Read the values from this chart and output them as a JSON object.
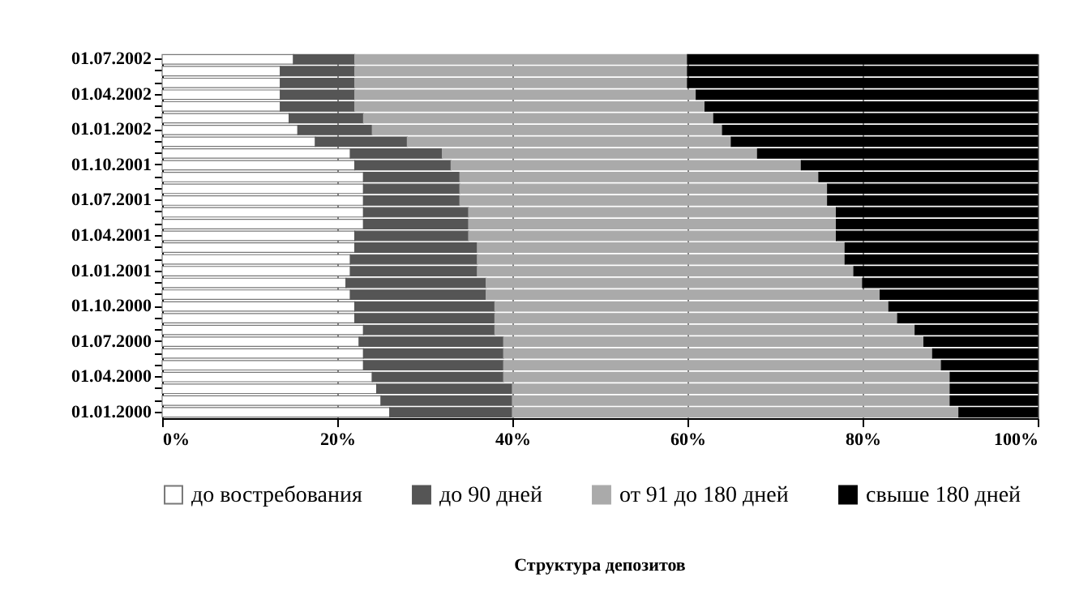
{
  "chart_data": {
    "type": "bar",
    "orientation": "horizontal",
    "stacked": true,
    "title": "Структура депозитов",
    "categories": [
      "01.07.2002",
      null,
      null,
      "01.04.2002",
      null,
      null,
      "01.01.2002",
      null,
      null,
      "01.10.2001",
      null,
      null,
      "01.07.2001",
      null,
      null,
      "01.04.2001",
      null,
      null,
      "01.01.2001",
      null,
      null,
      "01.10.2000",
      null,
      null,
      "01.07.2000",
      null,
      null,
      "01.04.2000",
      null,
      null,
      "01.01.2000"
    ],
    "series": [
      {
        "name": "до востребования",
        "color": "#ffffff",
        "values": [
          15,
          13.5,
          13.5,
          13.5,
          13.5,
          14.5,
          15.5,
          17.5,
          21.5,
          22,
          23,
          23,
          23,
          23,
          23,
          22,
          22,
          21.5,
          21.5,
          21,
          21.5,
          22,
          22,
          23,
          22.5,
          23,
          23,
          24,
          24.5,
          25,
          26
        ]
      },
      {
        "name": "до 90 дней",
        "color": "#555555",
        "values": [
          7,
          8.5,
          8.5,
          8.5,
          8.5,
          8.5,
          8.5,
          10.5,
          10.5,
          11,
          11,
          11,
          11,
          12,
          12,
          13,
          14,
          14.5,
          14.5,
          16,
          15.5,
          16,
          16,
          15,
          16.5,
          16,
          16,
          15,
          15.5,
          15,
          14
        ]
      },
      {
        "name": "от 91 до 180 дней",
        "color": "#aaaaaa",
        "values": [
          38,
          38,
          38,
          39,
          40,
          40,
          40,
          37,
          36,
          40,
          41,
          42,
          42,
          42,
          42,
          42,
          42,
          42,
          43,
          43,
          45,
          45,
          46,
          48,
          48,
          49,
          50,
          51,
          50,
          50,
          51
        ]
      },
      {
        "name": "свыше 180 дней",
        "color": "#000000",
        "values": [
          40,
          40,
          40,
          39,
          38,
          37,
          36,
          35,
          32,
          27,
          25,
          24,
          24,
          23,
          23,
          23,
          22,
          22,
          21,
          20,
          18,
          17,
          16,
          14,
          13,
          12,
          11,
          10,
          10,
          10,
          9
        ]
      }
    ],
    "xlim": [
      0,
      100
    ],
    "xticks": [
      {
        "value": 0,
        "label": "0%"
      },
      {
        "value": 20,
        "label": "20%"
      },
      {
        "value": 40,
        "label": "40%"
      },
      {
        "value": 60,
        "label": "60%"
      },
      {
        "value": 80,
        "label": "80%"
      },
      {
        "value": 100,
        "label": "100%"
      }
    ],
    "grid": "x",
    "legend": "bottom"
  }
}
